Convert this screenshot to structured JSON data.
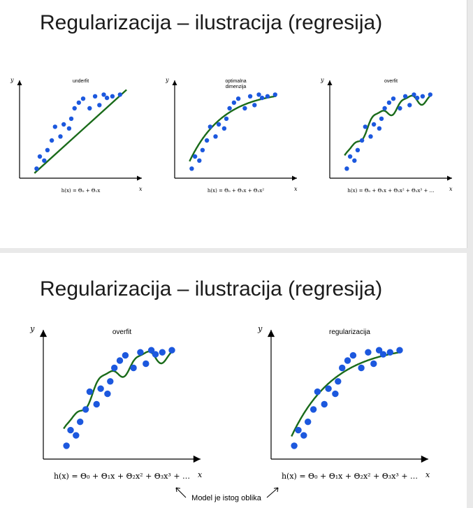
{
  "slides": [
    {
      "title": "Regularizacija – ilustracija (regresija)",
      "panels": [
        {
          "title_lines": [
            "underfit"
          ],
          "ylabel": "y",
          "xlabel": "x",
          "formula": "h(x) = Θ₀ + Θ₁x"
        },
        {
          "title_lines": [
            "optimalna",
            "dimenzija"
          ],
          "ylabel": "y",
          "xlabel": "x",
          "formula": "h(x) = Θ₀ + Θ₁x + Θ₂x²"
        },
        {
          "title_lines": [
            "overfit"
          ],
          "ylabel": "y",
          "xlabel": "x",
          "formula": "h(x) = Θ₀ + Θ₁x + Θ₂x² + Θ₃x³ + …"
        }
      ]
    },
    {
      "title": "Regularizacija – ilustracija (regresija)",
      "panels": [
        {
          "title_lines": [
            "overfit"
          ],
          "ylabel": "y",
          "xlabel": "x",
          "formula": "h(x) = Θ₀ + Θ₁x + Θ₂x² + Θ₃x³ + …"
        },
        {
          "title_lines": [
            "regularizacija"
          ],
          "ylabel": "y",
          "xlabel": "x",
          "formula": "h(x) = Θ₀ + Θ₁x + Θ₂x² + Θ₃x³ + …"
        }
      ],
      "note": "Model je istog oblika"
    }
  ],
  "colors": {
    "points": "#1c58de",
    "curve": "#1a6b1a",
    "axes": "#000000"
  },
  "chart_data": [
    {
      "type": "scatter",
      "title": "underfit",
      "xlabel": "x",
      "ylabel": "y",
      "fit": "line",
      "points": [
        [
          0.08,
          0.05
        ],
        [
          0.11,
          0.2
        ],
        [
          0.15,
          0.15
        ],
        [
          0.18,
          0.28
        ],
        [
          0.22,
          0.4
        ],
        [
          0.25,
          0.57
        ],
        [
          0.3,
          0.45
        ],
        [
          0.33,
          0.6
        ],
        [
          0.38,
          0.55
        ],
        [
          0.4,
          0.67
        ],
        [
          0.43,
          0.8
        ],
        [
          0.47,
          0.87
        ],
        [
          0.51,
          0.92
        ],
        [
          0.57,
          0.8
        ],
        [
          0.62,
          0.95
        ],
        [
          0.66,
          0.84
        ],
        [
          0.7,
          0.97
        ],
        [
          0.73,
          0.93
        ],
        [
          0.78,
          0.95
        ],
        [
          0.85,
          0.97
        ]
      ]
    },
    {
      "type": "scatter",
      "title": "optimalna dimenzija",
      "xlabel": "x",
      "ylabel": "y",
      "fit": "quadratic",
      "points": [
        [
          0.08,
          0.05
        ],
        [
          0.11,
          0.2
        ],
        [
          0.15,
          0.15
        ],
        [
          0.18,
          0.28
        ],
        [
          0.22,
          0.4
        ],
        [
          0.25,
          0.57
        ],
        [
          0.3,
          0.45
        ],
        [
          0.33,
          0.6
        ],
        [
          0.38,
          0.55
        ],
        [
          0.4,
          0.67
        ],
        [
          0.43,
          0.8
        ],
        [
          0.47,
          0.87
        ],
        [
          0.51,
          0.92
        ],
        [
          0.57,
          0.8
        ],
        [
          0.62,
          0.95
        ],
        [
          0.66,
          0.84
        ],
        [
          0.7,
          0.97
        ],
        [
          0.73,
          0.93
        ],
        [
          0.78,
          0.95
        ],
        [
          0.85,
          0.97
        ]
      ]
    },
    {
      "type": "scatter",
      "title": "overfit",
      "xlabel": "x",
      "ylabel": "y",
      "fit": "high-order polynomial",
      "points": [
        [
          0.08,
          0.05
        ],
        [
          0.11,
          0.2
        ],
        [
          0.15,
          0.15
        ],
        [
          0.18,
          0.28
        ],
        [
          0.22,
          0.4
        ],
        [
          0.25,
          0.57
        ],
        [
          0.3,
          0.45
        ],
        [
          0.33,
          0.6
        ],
        [
          0.38,
          0.55
        ],
        [
          0.4,
          0.67
        ],
        [
          0.43,
          0.8
        ],
        [
          0.47,
          0.87
        ],
        [
          0.51,
          0.92
        ],
        [
          0.57,
          0.8
        ],
        [
          0.62,
          0.95
        ],
        [
          0.66,
          0.84
        ],
        [
          0.7,
          0.97
        ],
        [
          0.73,
          0.93
        ],
        [
          0.78,
          0.95
        ],
        [
          0.85,
          0.97
        ]
      ]
    },
    {
      "type": "scatter",
      "title": "overfit",
      "xlabel": "x",
      "ylabel": "y",
      "fit": "high-order polynomial",
      "points": [
        [
          0.08,
          0.05
        ],
        [
          0.11,
          0.2
        ],
        [
          0.15,
          0.15
        ],
        [
          0.18,
          0.28
        ],
        [
          0.22,
          0.4
        ],
        [
          0.25,
          0.57
        ],
        [
          0.3,
          0.45
        ],
        [
          0.33,
          0.6
        ],
        [
          0.38,
          0.55
        ],
        [
          0.4,
          0.67
        ],
        [
          0.43,
          0.8
        ],
        [
          0.47,
          0.87
        ],
        [
          0.51,
          0.92
        ],
        [
          0.57,
          0.8
        ],
        [
          0.62,
          0.95
        ],
        [
          0.66,
          0.84
        ],
        [
          0.7,
          0.97
        ],
        [
          0.73,
          0.93
        ],
        [
          0.78,
          0.95
        ],
        [
          0.85,
          0.97
        ]
      ]
    },
    {
      "type": "scatter",
      "title": "regularizacija",
      "xlabel": "x",
      "ylabel": "y",
      "fit": "smooth (regularized)",
      "points": [
        [
          0.08,
          0.05
        ],
        [
          0.11,
          0.2
        ],
        [
          0.15,
          0.15
        ],
        [
          0.18,
          0.28
        ],
        [
          0.22,
          0.4
        ],
        [
          0.25,
          0.57
        ],
        [
          0.3,
          0.45
        ],
        [
          0.33,
          0.6
        ],
        [
          0.38,
          0.55
        ],
        [
          0.4,
          0.67
        ],
        [
          0.43,
          0.8
        ],
        [
          0.47,
          0.87
        ],
        [
          0.51,
          0.92
        ],
        [
          0.57,
          0.8
        ],
        [
          0.62,
          0.95
        ],
        [
          0.66,
          0.84
        ],
        [
          0.7,
          0.97
        ],
        [
          0.73,
          0.93
        ],
        [
          0.78,
          0.95
        ],
        [
          0.85,
          0.97
        ]
      ]
    }
  ]
}
